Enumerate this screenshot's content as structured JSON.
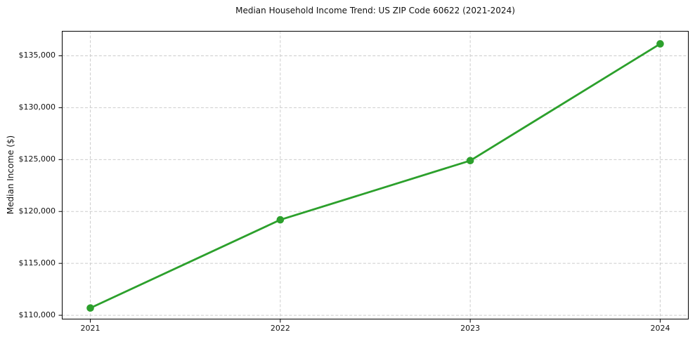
{
  "chart_data": {
    "type": "line",
    "title": "Median Household Income Trend: US ZIP Code 60622 (2021-2024)",
    "xlabel": "",
    "ylabel": "Median Income ($)",
    "x": [
      2021,
      2022,
      2023,
      2024
    ],
    "series": [
      {
        "name": "Median Household Income",
        "values": [
          110700,
          119200,
          124900,
          136150
        ]
      }
    ],
    "xticks": [
      {
        "label": "2021",
        "value": 2021
      },
      {
        "label": "2022",
        "value": 2022
      },
      {
        "label": "2023",
        "value": 2023
      },
      {
        "label": "2024",
        "value": 2024
      }
    ],
    "yticks": [
      {
        "label": "$110,000",
        "value": 110000
      },
      {
        "label": "$115,000",
        "value": 115000
      },
      {
        "label": "$120,000",
        "value": 120000
      },
      {
        "label": "$125,000",
        "value": 125000
      },
      {
        "label": "$130,000",
        "value": 130000
      },
      {
        "label": "$135,000",
        "value": 135000
      }
    ],
    "xlim": [
      2020.85,
      2024.15
    ],
    "ylim": [
      109600,
      137400
    ],
    "grid": true,
    "grid_style": "dashed",
    "legend": false,
    "marker": "o",
    "colors": {
      "line": "#2ca02c",
      "marker": "#2ca02c",
      "grid": "#cccccc",
      "spine": "#000000",
      "text": "#111111",
      "background": "#ffffff"
    }
  }
}
